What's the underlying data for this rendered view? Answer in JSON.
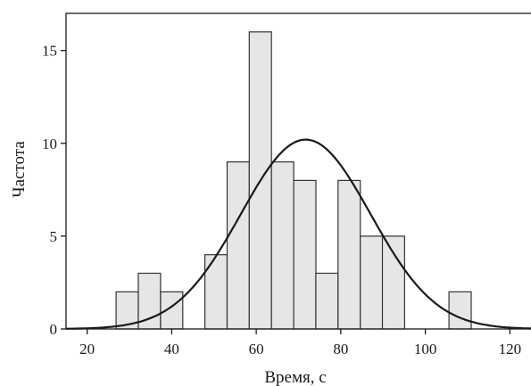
{
  "chart_data": {
    "type": "bar",
    "title": "",
    "xlabel": "Время, с",
    "ylabel": "Частота",
    "xlim": [
      15,
      125
    ],
    "ylim": [
      0,
      17
    ],
    "x_ticks": [
      20,
      40,
      60,
      80,
      100,
      120
    ],
    "y_ticks": [
      0,
      5,
      10,
      15
    ],
    "grid": false,
    "bin_width": 5.25,
    "bins": [
      {
        "x_start": 26.85,
        "x_end": 32.1,
        "count": 2
      },
      {
        "x_start": 32.1,
        "x_end": 37.35,
        "count": 3
      },
      {
        "x_start": 37.35,
        "x_end": 42.6,
        "count": 2
      },
      {
        "x_start": 42.6,
        "x_end": 47.85,
        "count": 0
      },
      {
        "x_start": 47.85,
        "x_end": 53.1,
        "count": 4
      },
      {
        "x_start": 53.1,
        "x_end": 58.35,
        "count": 9
      },
      {
        "x_start": 58.35,
        "x_end": 63.6,
        "count": 16
      },
      {
        "x_start": 63.6,
        "x_end": 68.85,
        "count": 9
      },
      {
        "x_start": 68.85,
        "x_end": 74.1,
        "count": 8
      },
      {
        "x_start": 74.1,
        "x_end": 79.35,
        "count": 3
      },
      {
        "x_start": 79.35,
        "x_end": 84.6,
        "count": 8
      },
      {
        "x_start": 84.6,
        "x_end": 89.85,
        "count": 5
      },
      {
        "x_start": 89.85,
        "x_end": 95.1,
        "count": 5
      },
      {
        "x_start": 95.1,
        "x_end": 100.35,
        "count": 0
      },
      {
        "x_start": 100.35,
        "x_end": 105.6,
        "count": 0
      },
      {
        "x_start": 105.6,
        "x_end": 110.85,
        "count": 2
      }
    ],
    "normal_curve": {
      "mean": 71.7,
      "sd": 15.35,
      "peak": 10.2
    },
    "colors": {
      "bar_fill": "#e6e6e6",
      "bar_stroke": "#333333",
      "curve": "#1a1a1a",
      "axis": "#1a1a1a"
    }
  }
}
